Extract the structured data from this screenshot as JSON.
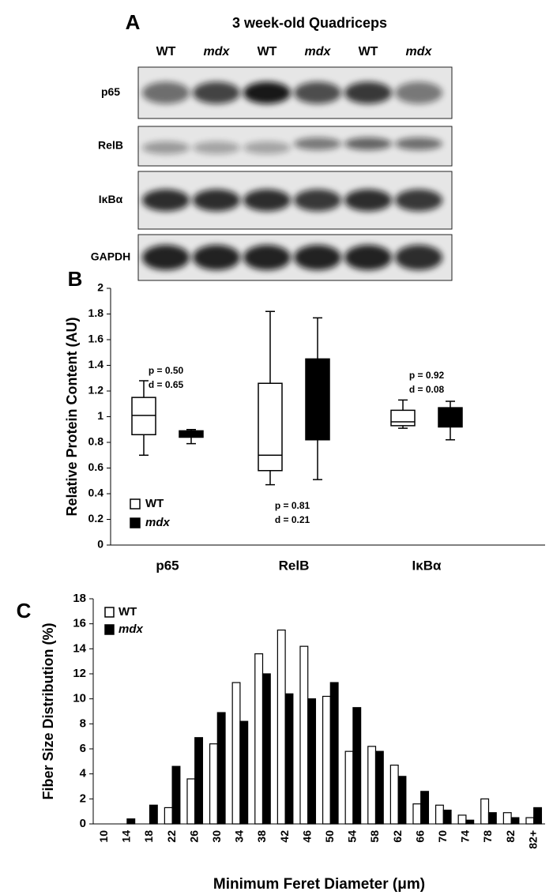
{
  "panel_a": {
    "label": "A",
    "title": "3 week-old Quadriceps",
    "lanes": [
      "WT",
      "mdx",
      "WT",
      "mdx",
      "WT",
      "mdx"
    ],
    "rows": [
      "p65",
      "RelB",
      "IκBα",
      "GAPDH"
    ]
  },
  "chart_data": [
    {
      "type": "box",
      "panel_label": "B",
      "y_label": "Relative Protein Content (AU)",
      "categories": [
        "p65",
        "RelB",
        "IκBα"
      ],
      "series": [
        {
          "name": "WT",
          "color": "#ffffff",
          "values": [
            [
              0.7,
              0.86,
              1.01,
              1.15,
              1.28
            ],
            [
              0.47,
              0.58,
              0.7,
              1.26,
              1.82
            ],
            [
              0.91,
              0.93,
              0.96,
              1.05,
              1.13
            ]
          ]
        },
        {
          "name": "mdx",
          "color": "#000000",
          "values": [
            [
              0.79,
              0.84,
              0.86,
              0.89,
              0.9
            ],
            [
              0.51,
              0.82,
              1.1,
              1.45,
              1.77
            ],
            [
              0.82,
              0.92,
              1.0,
              1.07,
              1.12
            ]
          ]
        }
      ],
      "annotations": [
        {
          "p": "p = 0.50",
          "d": "d = 0.65"
        },
        {
          "p": "p = 0.81",
          "d": "d = 0.21"
        },
        {
          "p": "p = 0.92",
          "d": "d = 0.08"
        }
      ],
      "ylim": [
        0,
        2
      ],
      "yticks": [
        0,
        0.2,
        0.4,
        0.6,
        0.8,
        1,
        1.2,
        1.4,
        1.6,
        1.8,
        2
      ]
    },
    {
      "type": "bar",
      "panel_label": "C",
      "x_label": "Minimum Feret Diameter (μm)",
      "y_label": "Fiber Size Distribution (%)",
      "categories": [
        "10",
        "14",
        "18",
        "22",
        "26",
        "30",
        "34",
        "38",
        "42",
        "46",
        "50",
        "54",
        "58",
        "62",
        "66",
        "70",
        "74",
        "78",
        "82",
        "82+"
      ],
      "series": [
        {
          "name": "WT",
          "color": "#ffffff",
          "values": [
            0,
            0,
            0,
            1.3,
            3.6,
            6.4,
            11.3,
            13.6,
            15.5,
            14.2,
            10.2,
            5.8,
            6.2,
            4.7,
            1.6,
            1.5,
            0.7,
            2.0,
            0.9,
            0.5
          ]
        },
        {
          "name": "mdx",
          "color": "#000000",
          "values": [
            0,
            0.4,
            1.5,
            4.6,
            6.9,
            8.9,
            8.2,
            12.0,
            10.4,
            10.0,
            11.3,
            9.3,
            5.8,
            3.8,
            2.6,
            1.1,
            0.3,
            0.9,
            0.5,
            1.3
          ]
        }
      ],
      "ylim": [
        0,
        18
      ],
      "yticks": [
        0,
        2,
        4,
        6,
        8,
        10,
        12,
        14,
        16,
        18
      ]
    }
  ]
}
